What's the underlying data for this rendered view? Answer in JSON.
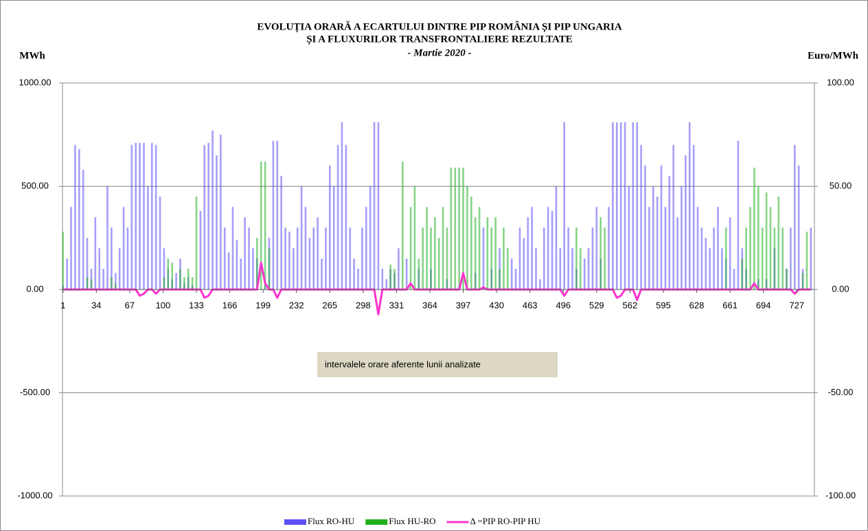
{
  "chart_data": {
    "type": "bar-line",
    "title": "EVOLUȚIA ORARĂ A ECARTULUI DINTRE PIP ROMÂNIA ȘI PIP UNGARIA",
    "title_line2": "ȘI A FLUXURILOR TRANSFRONTALIERE REZULTATE",
    "subtitle": "- Martie 2020 -",
    "y_label": "MWh",
    "y2_label": "Euro/MWh",
    "annotation": "intervalele orare aferente lunii analizate",
    "x": [
      1,
      5,
      9,
      13,
      17,
      21,
      25,
      29,
      33,
      37,
      41,
      45,
      49,
      53,
      57,
      61,
      65,
      69,
      73,
      77,
      81,
      85,
      89,
      93,
      97,
      101,
      105,
      109,
      113,
      117,
      121,
      125,
      129,
      133,
      137,
      141,
      145,
      149,
      153,
      157,
      161,
      165,
      169,
      173,
      177,
      181,
      185,
      189,
      193,
      197,
      201,
      205,
      209,
      213,
      217,
      221,
      225,
      229,
      233,
      237,
      241,
      245,
      249,
      253,
      257,
      261,
      265,
      269,
      273,
      277,
      281,
      285,
      289,
      293,
      297,
      301,
      305,
      309,
      313,
      317,
      321,
      325,
      329,
      333,
      337,
      341,
      345,
      349,
      353,
      357,
      361,
      365,
      369,
      373,
      377,
      381,
      385,
      389,
      393,
      397,
      401,
      405,
      409,
      413,
      417,
      421,
      425,
      429,
      433,
      437,
      441,
      445,
      449,
      453,
      457,
      461,
      465,
      469,
      473,
      477,
      481,
      485,
      489,
      493,
      497,
      501,
      505,
      509,
      513,
      517,
      521,
      525,
      529,
      533,
      537,
      541,
      545,
      549,
      553,
      557,
      561,
      565,
      569,
      573,
      577,
      581,
      585,
      589,
      593,
      597,
      601,
      605,
      609,
      613,
      617,
      621,
      625,
      629,
      633,
      637,
      641,
      645,
      649,
      653,
      657,
      661,
      665,
      669,
      673,
      677,
      681,
      685,
      689,
      693,
      697,
      701,
      705,
      709,
      713,
      717,
      721,
      725,
      729,
      733,
      737,
      741
    ],
    "series": [
      {
        "name": "Flux RO-HU",
        "color": "#5b4ff5",
        "values": [
          20,
          150,
          400,
          700,
          680,
          580,
          250,
          100,
          350,
          200,
          100,
          500,
          300,
          80,
          200,
          400,
          300,
          700,
          710,
          710,
          710,
          500,
          710,
          700,
          450,
          200,
          100,
          50,
          80,
          150,
          30,
          60,
          20,
          0,
          380,
          700,
          710,
          770,
          650,
          750,
          300,
          180,
          400,
          240,
          150,
          350,
          300,
          200,
          150,
          0,
          20,
          250,
          720,
          720,
          550,
          300,
          280,
          200,
          300,
          500,
          400,
          250,
          300,
          350,
          150,
          300,
          600,
          500,
          700,
          810,
          700,
          300,
          150,
          100,
          300,
          400,
          500,
          810,
          810,
          100,
          50,
          100,
          80,
          200,
          0,
          150,
          0,
          0,
          100,
          0,
          0,
          100,
          0,
          0,
          0,
          50,
          0,
          0,
          0,
          0,
          0,
          0,
          80,
          0,
          300,
          0,
          100,
          0,
          200,
          0,
          0,
          150,
          100,
          300,
          250,
          350,
          400,
          200,
          50,
          300,
          400,
          380,
          500,
          200,
          810,
          300,
          200,
          100,
          0,
          150,
          200,
          300,
          400,
          150,
          0,
          400,
          810,
          810,
          810,
          810,
          500,
          810,
          810,
          700,
          600,
          400,
          500,
          450,
          600,
          400,
          550,
          700,
          350,
          500,
          650,
          810,
          700,
          400,
          300,
          250,
          200,
          300,
          400,
          200,
          150,
          350,
          100,
          720,
          200,
          100,
          0,
          0,
          50,
          0,
          50,
          0,
          200,
          0,
          0,
          100,
          300,
          700,
          600,
          100,
          0,
          300
        ]
      },
      {
        "name": "Flux HU-RO",
        "color": "#22b022",
        "values": [
          280,
          0,
          0,
          0,
          0,
          0,
          60,
          50,
          0,
          0,
          0,
          0,
          60,
          30,
          0,
          0,
          0,
          0,
          0,
          0,
          0,
          0,
          0,
          0,
          0,
          60,
          150,
          130,
          0,
          100,
          60,
          100,
          60,
          450,
          0,
          0,
          0,
          0,
          0,
          0,
          0,
          0,
          0,
          0,
          0,
          0,
          0,
          0,
          250,
          620,
          620,
          200,
          0,
          0,
          0,
          0,
          0,
          0,
          0,
          0,
          0,
          0,
          0,
          0,
          0,
          0,
          0,
          0,
          0,
          0,
          0,
          0,
          0,
          0,
          0,
          0,
          0,
          0,
          0,
          0,
          0,
          120,
          100,
          0,
          620,
          0,
          400,
          500,
          150,
          300,
          400,
          300,
          350,
          250,
          400,
          300,
          590,
          590,
          590,
          590,
          500,
          450,
          350,
          400,
          0,
          350,
          300,
          350,
          100,
          300,
          200,
          0,
          0,
          0,
          0,
          0,
          0,
          0,
          0,
          0,
          0,
          0,
          0,
          0,
          0,
          0,
          0,
          300,
          200,
          0,
          0,
          0,
          0,
          350,
          300,
          0,
          0,
          0,
          0,
          0,
          0,
          0,
          0,
          0,
          0,
          0,
          0,
          0,
          0,
          0,
          0,
          0,
          0,
          0,
          0,
          0,
          0,
          0,
          0,
          0,
          0,
          0,
          0,
          0,
          300,
          0,
          0,
          0,
          150,
          300,
          400,
          590,
          500,
          300,
          470,
          400,
          300,
          450,
          300,
          100,
          0,
          0,
          0,
          80,
          280,
          0
        ]
      },
      {
        "name": "Δ =PIP RO-PIP HU",
        "color": "#ff33cc",
        "axis": "y2",
        "type": "line",
        "values": [
          0,
          0,
          0,
          0,
          0,
          0,
          0,
          0,
          0,
          0,
          0,
          0,
          0,
          0,
          0,
          0,
          0,
          0,
          0,
          -3,
          -2,
          0,
          0,
          -2,
          0,
          0,
          0,
          0,
          0,
          0,
          0,
          0,
          0,
          0,
          0,
          -4,
          -3,
          0,
          0,
          0,
          0,
          0,
          0,
          0,
          0,
          0,
          0,
          0,
          0,
          13,
          3,
          0,
          0,
          -4,
          0,
          0,
          0,
          0,
          0,
          0,
          0,
          0,
          0,
          0,
          0,
          0,
          0,
          0,
          0,
          0,
          0,
          0,
          0,
          0,
          0,
          0,
          0,
          0,
          -12,
          0,
          0,
          0,
          0,
          0,
          0,
          0,
          3,
          0,
          0,
          0,
          0,
          0,
          0,
          0,
          0,
          0,
          0,
          0,
          0,
          8,
          0,
          0,
          0,
          0,
          1,
          0,
          0,
          0,
          0,
          0,
          0,
          0,
          0,
          0,
          0,
          0,
          0,
          0,
          0,
          0,
          0,
          0,
          0,
          0,
          -3,
          0,
          0,
          0,
          0,
          0,
          0,
          0,
          0,
          0,
          0,
          0,
          0,
          -4,
          -3,
          0,
          0,
          0,
          -5,
          0,
          0,
          0,
          0,
          0,
          0,
          0,
          0,
          0,
          0,
          0,
          0,
          0,
          0,
          0,
          0,
          0,
          0,
          0,
          0,
          0,
          0,
          0,
          0,
          0,
          0,
          0,
          0,
          3,
          0,
          0,
          0,
          0,
          0,
          0,
          0,
          0,
          0,
          -2,
          0,
          0,
          0,
          0
        ]
      }
    ],
    "xlim": [
      0.5,
      744.5
    ],
    "xticks": [
      1,
      34,
      67,
      100,
      133,
      166,
      199,
      232,
      265,
      298,
      331,
      364,
      397,
      430,
      463,
      496,
      529,
      562,
      595,
      628,
      661,
      694,
      727
    ],
    "ylim": [
      -1000,
      1000
    ],
    "yticks": [
      {
        "value": -1000,
        "label": "-1000.00"
      },
      {
        "value": -500,
        "label": "-500.00"
      },
      {
        "value": 0,
        "label": "0.00"
      },
      {
        "value": 500,
        "label": "500.00"
      },
      {
        "value": 1000,
        "label": "1000.00"
      }
    ],
    "y2lim": [
      -100,
      100
    ],
    "y2ticks": [
      {
        "value": -100,
        "label": "-100.00"
      },
      {
        "value": -50,
        "label": "-50.00"
      },
      {
        "value": 0,
        "label": "0.00"
      },
      {
        "value": 50,
        "label": "50.00"
      },
      {
        "value": 100,
        "label": "100.00"
      }
    ],
    "grid": true,
    "legend": "bottom"
  }
}
